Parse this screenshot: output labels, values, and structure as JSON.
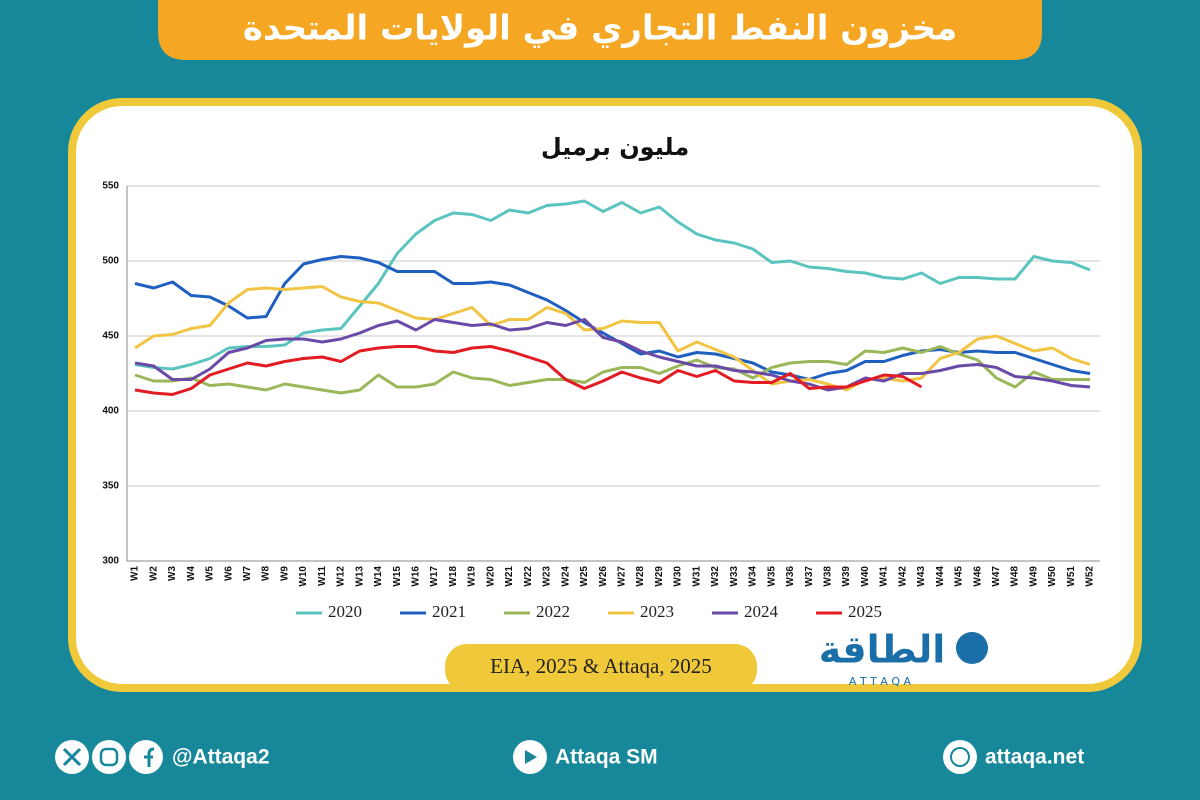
{
  "chart_data": {
    "type": "line",
    "title": "مخزون النفط التجاري في الولايات المتحدة",
    "subtitle": "مليون برميل",
    "categories": [
      "W1",
      "W2",
      "W3",
      "W4",
      "W5",
      "W6",
      "W7",
      "W8",
      "W9",
      "W10",
      "W11",
      "W12",
      "W13",
      "W14",
      "W15",
      "W16",
      "W17",
      "W18",
      "W19",
      "W20",
      "W21",
      "W22",
      "W23",
      "W24",
      "W25",
      "W26",
      "W27",
      "W28",
      "W29",
      "W30",
      "W31",
      "W32",
      "W33",
      "W34",
      "W35",
      "W36",
      "W37",
      "W38",
      "W39",
      "W40",
      "W41",
      "W42",
      "W43",
      "W44",
      "W45",
      "W46",
      "W47",
      "W48",
      "W49",
      "W50",
      "W51",
      "W52"
    ],
    "series": [
      {
        "name": "2020",
        "color": "#5bc4bf",
        "values": [
          431,
          429,
          428,
          431,
          435,
          442,
          443,
          443,
          444,
          452,
          454,
          455,
          470,
          485,
          505,
          518,
          527,
          532,
          531,
          527,
          534,
          532,
          537,
          538,
          540,
          533,
          539,
          532,
          536,
          526,
          518,
          514,
          512,
          508,
          499,
          500,
          496,
          495,
          493,
          492,
          489,
          488,
          492,
          485,
          489,
          489,
          488,
          488,
          503,
          500,
          499,
          494
        ]
      },
      {
        "name": "2021",
        "color": "#1f5fbf",
        "values": [
          485,
          482,
          486,
          477,
          476,
          470,
          462,
          463,
          485,
          498,
          501,
          503,
          502,
          499,
          493,
          493,
          493,
          485,
          485,
          486,
          484,
          479,
          474,
          467,
          459,
          452,
          445,
          438,
          440,
          436,
          439,
          438,
          435,
          432,
          426,
          424,
          421,
          425,
          427,
          433,
          433,
          437,
          440,
          441,
          439,
          440,
          439,
          439,
          435,
          431,
          427,
          425
        ]
      },
      {
        "name": "2022",
        "color": "#9ab85a",
        "values": [
          424,
          420,
          420,
          422,
          417,
          418,
          416,
          414,
          418,
          416,
          414,
          412,
          414,
          424,
          416,
          416,
          418,
          426,
          422,
          421,
          417,
          419,
          421,
          421,
          419,
          426,
          429,
          429,
          425,
          430,
          434,
          429,
          428,
          422,
          429,
          432,
          433,
          433,
          431,
          440,
          439,
          442,
          439,
          443,
          438,
          434,
          422,
          416,
          426,
          421,
          421,
          421
        ]
      },
      {
        "name": "2023",
        "color": "#f2c443",
        "values": [
          442,
          450,
          451,
          455,
          457,
          472,
          481,
          482,
          481,
          482,
          483,
          476,
          473,
          472,
          467,
          462,
          461,
          465,
          469,
          457,
          461,
          461,
          469,
          465,
          454,
          455,
          460,
          459,
          459,
          440,
          446,
          441,
          436,
          427,
          418,
          420,
          421,
          418,
          414,
          421,
          422,
          420,
          422,
          435,
          439,
          448,
          450,
          445,
          440,
          442,
          435,
          431
        ]
      },
      {
        "name": "2024",
        "color": "#6a4aa6",
        "values": [
          432,
          430,
          421,
          421,
          428,
          439,
          442,
          447,
          448,
          448,
          446,
          448,
          452,
          457,
          460,
          454,
          461,
          459,
          457,
          458,
          454,
          455,
          459,
          457,
          461,
          449,
          446,
          440,
          436,
          433,
          430,
          430,
          427,
          426,
          424,
          420,
          418,
          414,
          416,
          422,
          420,
          425,
          425,
          427,
          430,
          431,
          429,
          423,
          422,
          420,
          417,
          416
        ]
      },
      {
        "name": "2025",
        "color": "#e31b23",
        "values": [
          414,
          412,
          411,
          415,
          424,
          428,
          432,
          430,
          433,
          435,
          436,
          433,
          440,
          442,
          443,
          443,
          440,
          439,
          442,
          443,
          440,
          436,
          432,
          421,
          415,
          420,
          426,
          422,
          419,
          427,
          423,
          427,
          420,
          419,
          419,
          425,
          415,
          416,
          416,
          420,
          424,
          423,
          416,
          null,
          null,
          null,
          null,
          null,
          null,
          null,
          null,
          null
        ]
      }
    ],
    "ylim": [
      300,
      550
    ],
    "yticks": [
      300,
      350,
      400,
      450,
      500,
      550
    ],
    "grid": true
  },
  "source": "EIA, 2025 & Attaqa, 2025",
  "logo": {
    "name": "الطاقة",
    "tagline": "A T T A Q A"
  },
  "footer": {
    "handle": "@Attaqa2",
    "youtube": "Attaqa SM",
    "website": "attaqa.net"
  }
}
